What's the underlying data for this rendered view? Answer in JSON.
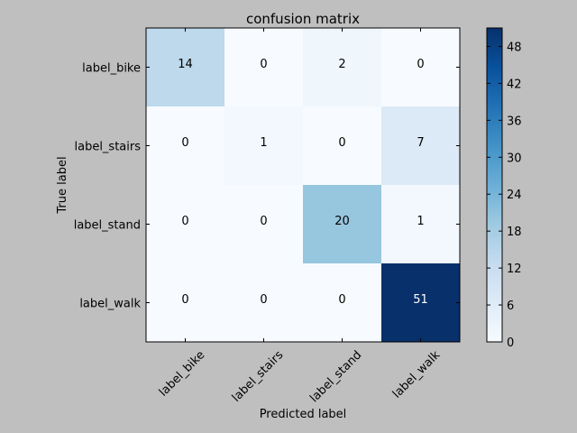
{
  "chart_data": {
    "type": "heatmap",
    "title": "confusion matrix",
    "xlabel": "Predicted label",
    "ylabel": "True label",
    "x_categories": [
      "label_bike",
      "label_stairs",
      "label_stand",
      "label_walk"
    ],
    "y_categories": [
      "label_bike",
      "label_stairs",
      "label_stand",
      "label_walk"
    ],
    "values": [
      [
        14,
        0,
        2,
        0
      ],
      [
        0,
        1,
        0,
        7
      ],
      [
        0,
        0,
        20,
        1
      ],
      [
        0,
        0,
        0,
        51
      ]
    ],
    "colorbar": {
      "colormap": "Blues",
      "range": [
        0,
        51
      ],
      "ticks": [
        "0",
        "6",
        "12",
        "18",
        "24",
        "30",
        "36",
        "42",
        "48"
      ]
    },
    "annotation_threshold": 25.5,
    "colors": {
      "background": "#bfbfbf",
      "text_dark": "#000000",
      "text_light": "#ffffff"
    }
  }
}
